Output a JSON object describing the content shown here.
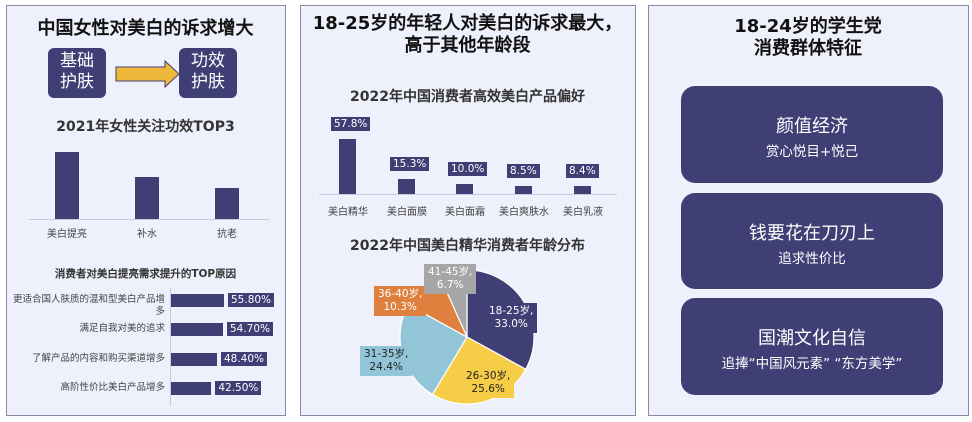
{
  "panel1": {
    "title": "中国女性对美白的诉求增大",
    "flow": {
      "from_line1": "基础",
      "from_line2": "护肤",
      "to_line1": "功效",
      "to_line2": "护肤",
      "arrow_icon": "right-arrow-icon"
    },
    "chart1_title": "2021年女性关注功效TOP3",
    "chart2_title": "消费者对美白提亮需求提升的TOP原因"
  },
  "panel2": {
    "title_line1": "18-25岁的年轻人对美白的诉求最大，",
    "title_line2": "高于其他年龄段",
    "chart1_title": "2022年中国消费者高效美白产品偏好",
    "chart2_title": "2022年中国美白精华消费者年龄分布"
  },
  "panel3": {
    "title_line1": "18-24岁的学生党",
    "title_line2": "消费群体特征",
    "cards": [
      {
        "heading": "颜值经济",
        "sub": "赏心悦目+悦己"
      },
      {
        "heading": "钱要花在刀刃上",
        "sub": "追求性价比"
      },
      {
        "heading": "国潮文化自信",
        "sub": "追捧“中国风元素” “东方美学”"
      }
    ]
  },
  "colors": {
    "navy": "#3f3f76",
    "arrow": "#f0b83a",
    "panel_bg": "#eef1fc",
    "pie_yellow": "#f5cd47",
    "pie_lightblue": "#93c5d8",
    "pie_orange": "#e0803e",
    "pie_gray": "#a6a6a6"
  },
  "chart_data": [
    {
      "type": "bar",
      "title": "2021年女性关注功效TOP3",
      "categories": [
        "美白提亮",
        "补水",
        "抗老"
      ],
      "values": [
        100,
        63,
        46
      ],
      "note": "relative bar heights, no value labels shown",
      "grid": false
    },
    {
      "type": "bar",
      "orientation": "horizontal",
      "title": "消费者对美白提亮需求提升的TOP原因",
      "categories": [
        "更适合国人肤质的温和型美白产品增多",
        "满足自我对美的追求",
        "了解产品的内容和购买渠道增多",
        "高阶性价比美白产品增多"
      ],
      "values": [
        55.8,
        54.7,
        48.4,
        42.5
      ],
      "labels": [
        "55.80%",
        "54.70%",
        "48.40%",
        "42.50%"
      ],
      "unit": "%"
    },
    {
      "type": "bar",
      "title": "2022年中国消费者高效美白产品偏好",
      "categories": [
        "美白精华",
        "美白面膜",
        "美白面霜",
        "美白爽肤水",
        "美白乳液"
      ],
      "values": [
        57.8,
        15.3,
        10.0,
        8.5,
        8.4
      ],
      "labels": [
        "57.8%",
        "15.3%",
        "10.0%",
        "8.5%",
        "8.4%"
      ],
      "unit": "%"
    },
    {
      "type": "pie",
      "title": "2022年中国美白精华消费者年龄分布",
      "categories": [
        "18-25岁",
        "26-30岁",
        "31-35岁",
        "36-40岁",
        "41-45岁"
      ],
      "values": [
        33.0,
        25.6,
        24.4,
        10.3,
        6.7
      ],
      "labels": [
        "18-25岁,\n33.0%",
        "26-30岁,\n25.6%",
        "31-35岁,\n24.4%",
        "36-40岁,\n10.3%",
        "41-45岁,\n6.7%"
      ],
      "colors": [
        "#3f3f76",
        "#f5cd47",
        "#93c5d8",
        "#e0803e",
        "#a6a6a6"
      ],
      "unit": "%"
    }
  ]
}
